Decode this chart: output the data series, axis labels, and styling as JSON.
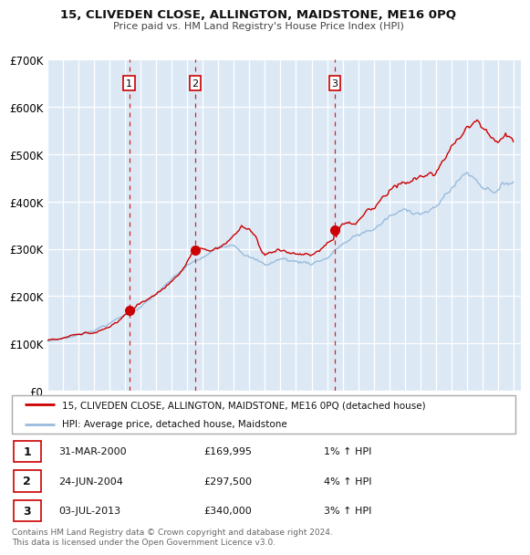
{
  "title": "15, CLIVEDEN CLOSE, ALLINGTON, MAIDSTONE, ME16 0PQ",
  "subtitle": "Price paid vs. HM Land Registry's House Price Index (HPI)",
  "bg_color": "#ffffff",
  "chart_bg_color": "#dce9f5",
  "grid_color": "#c8d8ea",
  "xlim": [
    1995.0,
    2025.5
  ],
  "ylim": [
    0,
    700000
  ],
  "yticks": [
    0,
    100000,
    200000,
    300000,
    400000,
    500000,
    600000,
    700000
  ],
  "ytick_labels": [
    "£0",
    "£100K",
    "£200K",
    "£300K",
    "£400K",
    "£500K",
    "£600K",
    "£700K"
  ],
  "xticks": [
    1995,
    1996,
    1997,
    1998,
    1999,
    2000,
    2001,
    2002,
    2003,
    2004,
    2005,
    2006,
    2007,
    2008,
    2009,
    2010,
    2011,
    2012,
    2013,
    2014,
    2015,
    2016,
    2017,
    2018,
    2019,
    2020,
    2021,
    2022,
    2023,
    2024,
    2025
  ],
  "sale_color": "#cc0000",
  "hpi_color": "#99bbdd",
  "marker_color": "#cc0000",
  "dashed_line_color": "#cc0000",
  "sales": [
    {
      "year": 2000.25,
      "price": 169995,
      "label": "1"
    },
    {
      "year": 2004.5,
      "price": 297500,
      "label": "2"
    },
    {
      "year": 2013.5,
      "price": 340000,
      "label": "3"
    }
  ],
  "legend_sale_label": "15, CLIVEDEN CLOSE, ALLINGTON, MAIDSTONE, ME16 0PQ (detached house)",
  "legend_hpi_label": "HPI: Average price, detached house, Maidstone",
  "table_rows": [
    {
      "num": "1",
      "date": "31-MAR-2000",
      "price": "£169,995",
      "change": "1% ↑ HPI"
    },
    {
      "num": "2",
      "date": "24-JUN-2004",
      "price": "£297,500",
      "change": "4% ↑ HPI"
    },
    {
      "num": "3",
      "date": "03-JUL-2013",
      "price": "£340,000",
      "change": "3% ↑ HPI"
    }
  ],
  "footer": "Contains HM Land Registry data © Crown copyright and database right 2024.\nThis data is licensed under the Open Government Licence v3.0."
}
